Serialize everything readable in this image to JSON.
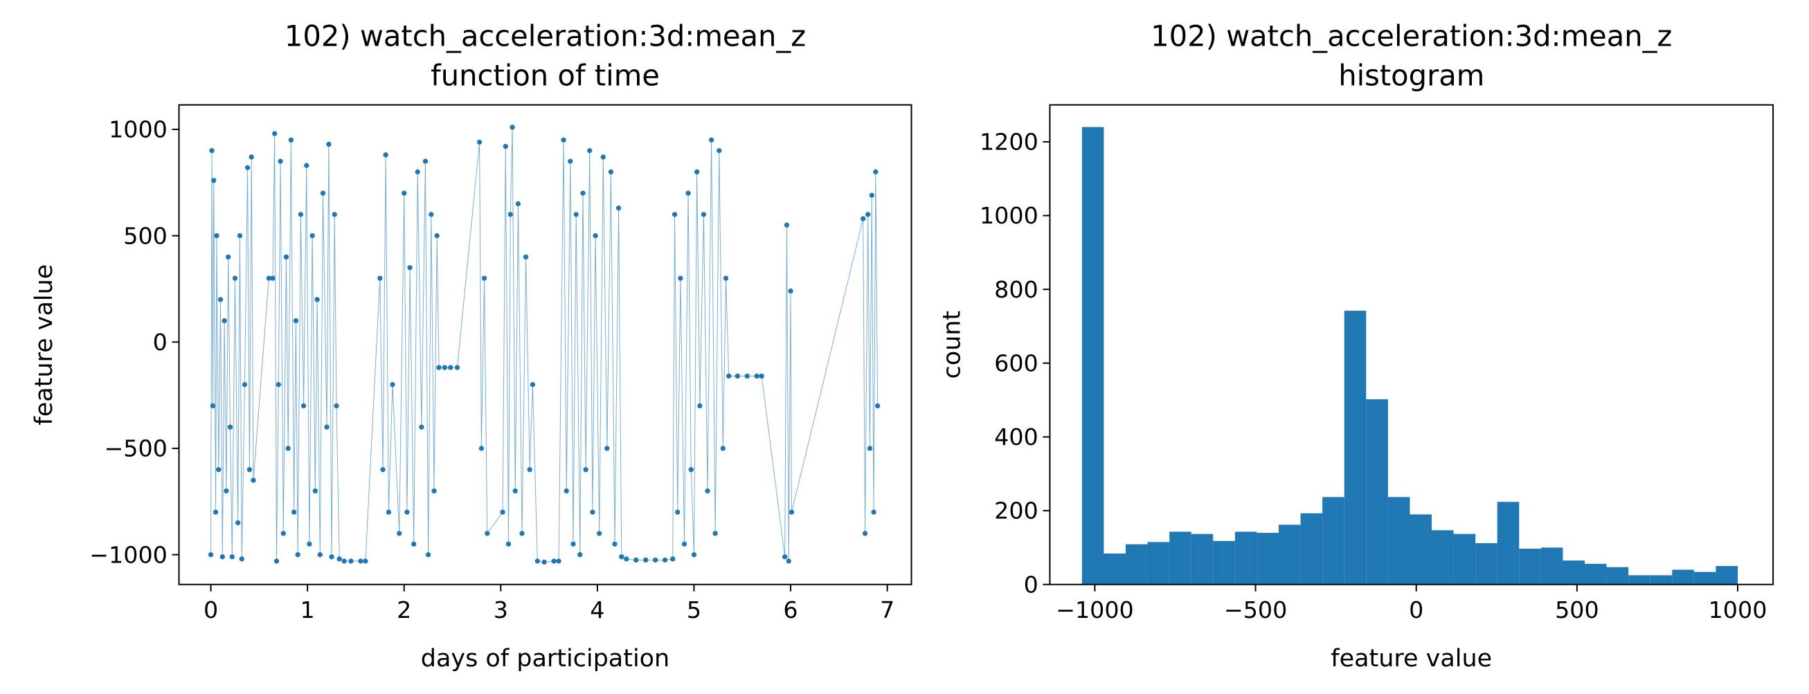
{
  "chart_data": [
    {
      "type": "line",
      "title": "102) watch_acceleration:3d:mean_z",
      "subtitle": "function of time",
      "x_label": "days of participation",
      "y_label": "feature value",
      "x": [
        0.0,
        0.01,
        0.02,
        0.03,
        0.05,
        0.06,
        0.08,
        0.1,
        0.12,
        0.14,
        0.16,
        0.18,
        0.2,
        0.22,
        0.25,
        0.28,
        0.3,
        0.32,
        0.35,
        0.38,
        0.4,
        0.42,
        0.44,
        0.6,
        0.64,
        0.66,
        0.68,
        0.7,
        0.72,
        0.75,
        0.78,
        0.8,
        0.83,
        0.86,
        0.88,
        0.9,
        0.93,
        0.96,
        0.99,
        1.02,
        1.05,
        1.08,
        1.1,
        1.13,
        1.16,
        1.2,
        1.22,
        1.25,
        1.28,
        1.3,
        1.33,
        1.38,
        1.45,
        1.55,
        1.6,
        1.75,
        1.78,
        1.81,
        1.84,
        1.88,
        1.95,
        2.0,
        2.03,
        2.06,
        2.1,
        2.14,
        2.18,
        2.22,
        2.25,
        2.28,
        2.31,
        2.34,
        2.36,
        2.42,
        2.48,
        2.55,
        2.78,
        2.8,
        2.83,
        2.86,
        3.02,
        3.05,
        3.08,
        3.1,
        3.12,
        3.15,
        3.18,
        3.22,
        3.26,
        3.3,
        3.33,
        3.38,
        3.45,
        3.55,
        3.6,
        3.65,
        3.68,
        3.72,
        3.75,
        3.78,
        3.82,
        3.85,
        3.88,
        3.92,
        3.95,
        3.98,
        4.02,
        4.06,
        4.1,
        4.14,
        4.18,
        4.22,
        4.25,
        4.3,
        4.4,
        4.5,
        4.6,
        4.7,
        4.78,
        4.8,
        4.83,
        4.86,
        4.9,
        4.94,
        4.97,
        5.0,
        5.03,
        5.06,
        5.1,
        5.14,
        5.18,
        5.22,
        5.26,
        5.3,
        5.33,
        5.36,
        5.45,
        5.55,
        5.65,
        5.7,
        5.94,
        5.96,
        5.98,
        6.0,
        6.01,
        6.75,
        6.77,
        6.8,
        6.82,
        6.84,
        6.86,
        6.88,
        6.9
      ],
      "series": [
        {
          "color": "#1f77b4",
          "values": [
            -1000,
            900,
            -300,
            760,
            -800,
            500,
            -600,
            200,
            -1010,
            100,
            -700,
            400,
            -400,
            -1010,
            300,
            -850,
            500,
            -1020,
            -200,
            820,
            -600,
            870,
            -650,
            300,
            300,
            980,
            -1030,
            -200,
            850,
            -900,
            400,
            -500,
            950,
            -800,
            100,
            -1000,
            600,
            -300,
            830,
            -950,
            500,
            -700,
            200,
            -1000,
            700,
            -400,
            930,
            -1010,
            600,
            -300,
            -1020,
            -1030,
            -1030,
            -1030,
            -1030,
            300,
            -600,
            880,
            -800,
            -200,
            -900,
            700,
            -800,
            350,
            -950,
            800,
            -400,
            850,
            -1000,
            600,
            -700,
            500,
            -120,
            -120,
            -120,
            -120,
            940,
            -500,
            300,
            -900,
            -800,
            920,
            -950,
            600,
            1010,
            -700,
            650,
            -900,
            400,
            -600,
            -200,
            -1030,
            -1035,
            -1030,
            -1030,
            950,
            -700,
            850,
            -950,
            600,
            -1000,
            700,
            -600,
            900,
            -800,
            500,
            -900,
            870,
            -500,
            800,
            -950,
            630,
            -1010,
            -1020,
            -1025,
            -1025,
            -1025,
            -1025,
            -1020,
            600,
            -800,
            300,
            -950,
            700,
            -600,
            -1000,
            800,
            -300,
            600,
            -700,
            950,
            -900,
            900,
            -500,
            300,
            -160,
            -160,
            -160,
            -160,
            -160,
            -1010,
            550,
            -1030,
            240,
            -800,
            580,
            -900,
            600,
            -500,
            690,
            -800,
            800,
            -300
          ]
        }
      ],
      "xlim": [
        -0.33,
        7.25
      ],
      "xticks": [
        0,
        1,
        2,
        3,
        4,
        5,
        6,
        7
      ],
      "ylim": [
        -1140,
        1115
      ],
      "yticks": [
        {
          "value": -1000,
          "label": "−1000"
        },
        {
          "value": -500,
          "label": "−500"
        },
        0,
        500,
        1000
      ]
    },
    {
      "type": "histogram",
      "title": "102) watch_acceleration:3d:mean_z",
      "subtitle": "histogram",
      "x_label": "feature value",
      "y_label": "count",
      "color": "#1f77b4",
      "bins": [
        -1040,
        -972,
        -904,
        -836,
        -768,
        -700,
        -632,
        -564,
        -496,
        -428,
        -360,
        -292,
        -224,
        -156,
        -88,
        -20,
        48,
        116,
        184,
        252,
        320,
        388,
        456,
        524,
        592,
        660,
        728,
        796,
        864,
        932,
        1000
      ],
      "values": [
        1240,
        84,
        109,
        115,
        143,
        137,
        118,
        143,
        140,
        162,
        193,
        237,
        742,
        502,
        237,
        190,
        147,
        137,
        112,
        224,
        97,
        100,
        65,
        56,
        47,
        25,
        25,
        40,
        34,
        50
      ],
      "xlim": [
        -1140,
        1110
      ],
      "xticks": [
        {
          "value": -1000,
          "label": "−1000"
        },
        {
          "value": -500,
          "label": "−500"
        },
        0,
        500,
        1000
      ],
      "ylim": [
        0,
        1300
      ],
      "yticks": [
        0,
        200,
        400,
        600,
        800,
        1000,
        1200
      ]
    }
  ]
}
